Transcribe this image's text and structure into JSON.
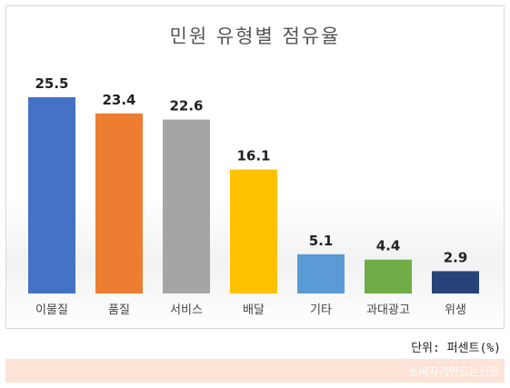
{
  "chart_data": {
    "type": "bar",
    "title": "민원 유형별 점유율",
    "categories": [
      "이물질",
      "품질",
      "서비스",
      "배달",
      "기타",
      "과대광고",
      "위생"
    ],
    "values": [
      25.5,
      23.4,
      22.6,
      16.1,
      5.1,
      4.4,
      2.9
    ],
    "colors": [
      "#4472c4",
      "#ed7d31",
      "#a5a5a5",
      "#ffc000",
      "#5b9bd5",
      "#70ad47",
      "#264478"
    ],
    "ylim": [
      0,
      25.5
    ],
    "grid": false,
    "legend": "none"
  },
  "unit_label": "단위: 퍼센트(%)",
  "footer_watermark": "소비자가만드는신문"
}
